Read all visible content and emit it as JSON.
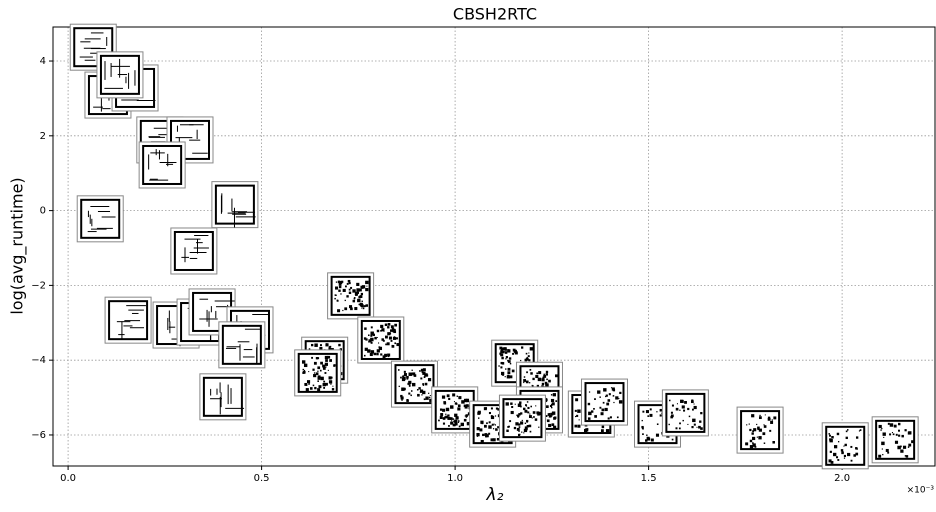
{
  "chart_data": {
    "type": "scatter",
    "title": "CBSH2RTC",
    "x_label": "λ₂",
    "y_label": "log(avg_runtime)",
    "x_offset_label": "×10⁻³",
    "x": [
      0.065,
      0.103,
      0.173,
      0.134,
      0.237,
      0.315,
      0.243,
      0.431,
      0.083,
      0.325,
      0.73,
      0.155,
      0.279,
      0.341,
      0.372,
      0.47,
      0.449,
      0.4,
      0.663,
      0.645,
      0.808,
      0.895,
      0.999,
      1.097,
      1.154,
      1.218,
      1.218,
      1.174,
      1.352,
      1.386,
      1.523,
      1.595,
      1.788,
      2.008,
      2.137
    ],
    "values": [
      4.37,
      3.09,
      3.28,
      3.63,
      1.89,
      1.89,
      1.22,
      0.16,
      -0.22,
      -1.08,
      -2.28,
      -2.93,
      -3.06,
      -2.98,
      -2.71,
      -3.19,
      -3.59,
      -4.98,
      -4.0,
      -4.34,
      -3.46,
      -4.64,
      -5.33,
      -5.71,
      -4.08,
      -4.67,
      -5.33,
      -5.55,
      -5.44,
      -5.12,
      -5.71,
      -5.41,
      -5.87,
      -6.29,
      -6.13
    ],
    "xlim": [
      -0.039,
      2.24
    ],
    "ylim": [
      -6.83,
      4.91
    ],
    "xticks": [
      {
        "value": 0,
        "label": "0.0"
      },
      0.5,
      {
        "value": 1,
        "label": "1.0"
      },
      1.5,
      {
        "value": 2,
        "label": "2.0"
      }
    ],
    "yticks": [
      {
        "value": -6,
        "label": "−6"
      },
      {
        "value": -4,
        "label": "−4"
      },
      {
        "value": -2,
        "label": "−2"
      },
      0,
      2,
      4
    ],
    "grid": true
  }
}
